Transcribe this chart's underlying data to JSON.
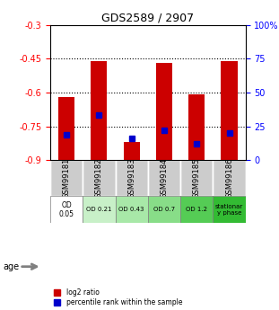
{
  "title": "GDS2589 / 2907",
  "samples": [
    "GSM99181",
    "GSM99182",
    "GSM99183",
    "GSM99184",
    "GSM99185",
    "GSM99186"
  ],
  "log2_ratio": [
    -0.62,
    -0.46,
    -0.82,
    -0.47,
    -0.61,
    -0.46
  ],
  "percentile_rank": [
    0.19,
    0.33,
    0.16,
    0.22,
    0.12,
    0.2
  ],
  "ylim_left": [
    -0.9,
    -0.3
  ],
  "yticks_left": [
    -0.9,
    -0.75,
    -0.6,
    -0.45,
    -0.3
  ],
  "yticks_right": [
    0,
    25,
    50,
    75,
    100
  ],
  "ylim_right": [
    0,
    100
  ],
  "bar_color": "#cc0000",
  "dot_color": "#0000cc",
  "bar_width": 0.5,
  "age_labels": [
    "OD\n0.05",
    "OD 0.21",
    "OD 0.43",
    "OD 0.7",
    "OD 1.2",
    "stationar\ny phase"
  ],
  "age_bg_colors": [
    "#ffffff",
    "#b3ffb3",
    "#88ee88",
    "#66dd66",
    "#44cc44",
    "#22bb22"
  ],
  "sample_bg_color": "#cccccc",
  "legend_log2": "log2 ratio",
  "legend_pct": "percentile rank within the sample",
  "dotted_lines": [
    -0.45,
    -0.6,
    -0.75
  ],
  "xlabel": "",
  "ylabel_left": "",
  "ylabel_right": ""
}
